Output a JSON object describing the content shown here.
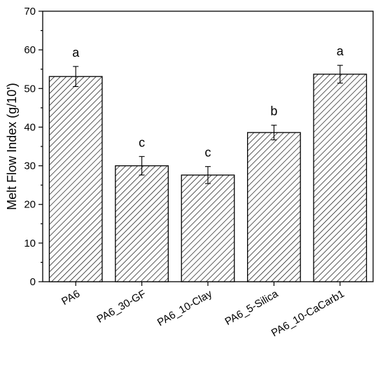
{
  "chart_data": {
    "type": "bar",
    "title": "",
    "xlabel": "",
    "ylabel": "Melt Flow Index (g/10')",
    "ylim": [
      0,
      70
    ],
    "yticks": [
      0,
      10,
      20,
      30,
      40,
      50,
      60,
      70
    ],
    "grid": false,
    "pattern": "diagonal-hatch",
    "bar_color": "#ffffff",
    "edge_color": "#000000",
    "categories": [
      "PA6",
      "PA6_30-GF",
      "PA6_10-Clay",
      "PA6_5-Silica",
      "PA6_10-CaCarb1"
    ],
    "values": [
      53.1,
      30.0,
      27.6,
      38.6,
      53.7
    ],
    "errors": [
      2.6,
      2.4,
      2.2,
      1.9,
      2.3
    ],
    "significance_letters": [
      "a",
      "c",
      "c",
      "b",
      "a"
    ]
  }
}
